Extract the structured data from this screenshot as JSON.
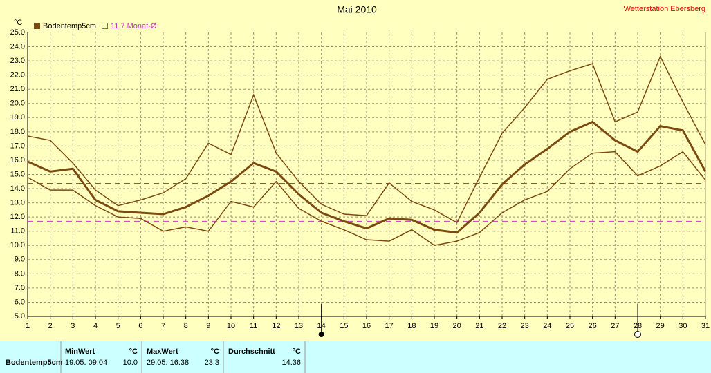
{
  "chart_data": {
    "type": "line",
    "title": "Mai 2010",
    "station": "Wetterstation Ebersberg",
    "y_unit": "°C",
    "x": [
      1,
      2,
      3,
      4,
      5,
      6,
      7,
      8,
      9,
      10,
      11,
      12,
      13,
      14,
      15,
      16,
      17,
      18,
      19,
      20,
      21,
      22,
      23,
      24,
      25,
      26,
      27,
      28,
      29,
      30,
      31
    ],
    "xlim": [
      1,
      31
    ],
    "xticks": [
      1,
      2,
      3,
      4,
      5,
      6,
      7,
      8,
      9,
      10,
      11,
      12,
      13,
      14,
      15,
      16,
      17,
      18,
      19,
      20,
      21,
      22,
      23,
      24,
      25,
      26,
      27,
      28,
      29,
      30,
      31
    ],
    "ylim": [
      5,
      25
    ],
    "yticks": [
      {
        "value": 5,
        "label": "5.0"
      },
      {
        "value": 6,
        "label": "6.0"
      },
      {
        "value": 7,
        "label": "7.0"
      },
      {
        "value": 8,
        "label": "8.0"
      },
      {
        "value": 9,
        "label": "9.0"
      },
      {
        "value": 10,
        "label": "10.0"
      },
      {
        "value": 11,
        "label": "11.0"
      },
      {
        "value": 12,
        "label": "12.0"
      },
      {
        "value": 13,
        "label": "13.0"
      },
      {
        "value": 14,
        "label": "14.0"
      },
      {
        "value": 15,
        "label": "15.0"
      },
      {
        "value": 16,
        "label": "16.0"
      },
      {
        "value": 17,
        "label": "17.0"
      },
      {
        "value": 18,
        "label": "18.0"
      },
      {
        "value": 19,
        "label": "19.0"
      },
      {
        "value": 20,
        "label": "20.0"
      },
      {
        "value": 21,
        "label": "21.0"
      },
      {
        "value": 22,
        "label": "22.0"
      },
      {
        "value": 23,
        "label": "23.0"
      },
      {
        "value": 24,
        "label": "24.0"
      },
      {
        "value": 25,
        "label": "25.0"
      }
    ],
    "grid": true,
    "series": [
      {
        "name": "Bodentemp5cm",
        "color": "#7a4a10",
        "width": 3,
        "values": [
          15.9,
          15.2,
          15.4,
          13.2,
          12.4,
          12.3,
          12.2,
          12.7,
          13.5,
          14.5,
          15.8,
          15.2,
          13.6,
          12.3,
          11.7,
          11.2,
          11.9,
          11.8,
          11.1,
          10.9,
          12.3,
          14.3,
          15.7,
          16.8,
          18.0,
          18.7,
          17.4,
          16.6,
          18.4,
          18.1,
          15.2
        ]
      },
      {
        "color": "#7a4a10",
        "width": 1.5,
        "values": [
          17.7,
          17.4,
          15.8,
          13.9,
          12.8,
          13.2,
          13.7,
          14.7,
          17.2,
          16.4,
          20.6,
          16.5,
          14.5,
          12.9,
          12.2,
          12.1,
          14.4,
          13.1,
          12.5,
          11.6,
          14.8,
          17.9,
          19.7,
          21.7,
          22.3,
          22.8,
          18.7,
          19.4,
          23.3,
          20.1,
          17.1
        ]
      },
      {
        "color": "#7a4a10",
        "width": 1.5,
        "values": [
          14.8,
          13.9,
          13.9,
          12.8,
          12.0,
          11.9,
          11.0,
          11.3,
          11.0,
          13.1,
          12.7,
          14.5,
          12.6,
          11.7,
          11.1,
          10.4,
          10.3,
          11.1,
          10.0,
          10.3,
          10.9,
          12.3,
          13.2,
          13.8,
          15.4,
          16.5,
          16.6,
          14.9,
          15.6,
          16.6,
          14.6
        ]
      }
    ],
    "reference_lines": [
      {
        "value": 14.36,
        "color": "#7a4a10"
      },
      {
        "value": 11.7,
        "label": "11.7 Monat-Ø",
        "color": "#cc33cc"
      }
    ]
  },
  "table": {
    "columns": [
      {
        "label": "MinWert",
        "unit": "°C"
      },
      {
        "label": "MaxWert",
        "unit": "°C"
      },
      {
        "label": "Durchschnitt",
        "unit": "°C"
      }
    ],
    "row": {
      "label": "Bodentemp5cm",
      "min_time": "19.05.  09:04",
      "min": "10.0",
      "max_time": "29.05.  16:38",
      "max": "23.3",
      "mean": "14.36"
    }
  }
}
